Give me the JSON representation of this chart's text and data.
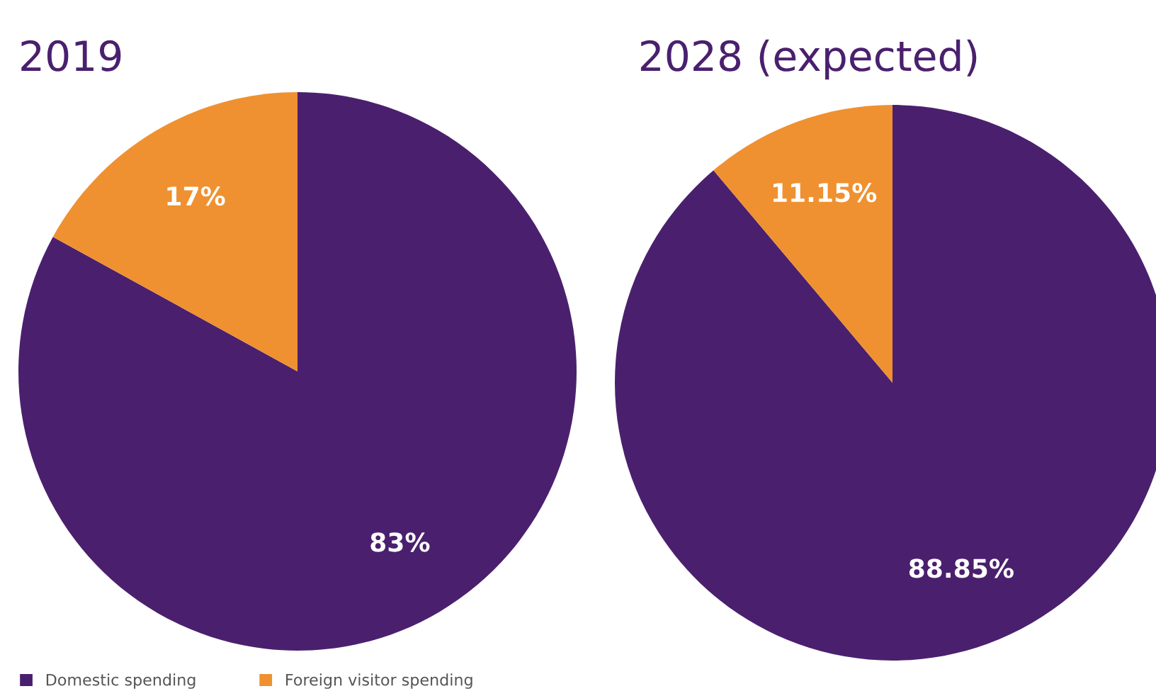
{
  "chart_data": [
    {
      "type": "pie",
      "title": "2019",
      "categories": [
        "Domestic spending",
        "Foreign visitor spending"
      ],
      "values": [
        83,
        17
      ],
      "colors": [
        "#4a206e",
        "#ef9130"
      ],
      "value_labels": [
        "83%",
        "17%"
      ],
      "legend": "bottom left"
    },
    {
      "type": "pie",
      "title": "2028 (expected)",
      "categories": [
        null,
        null
      ],
      "values": [
        88.85,
        11.15
      ],
      "colors": [
        "#4a206e",
        "#ef9130"
      ],
      "value_labels": [
        "88.85%",
        "11.15%"
      ]
    }
  ]
}
